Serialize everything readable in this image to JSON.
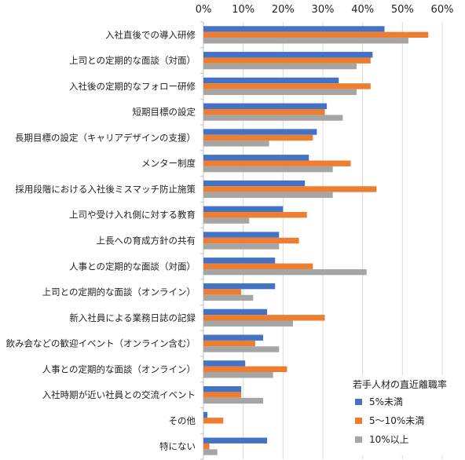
{
  "chart_data": {
    "type": "bar",
    "orientation": "horizontal",
    "title": "",
    "xlabel": "",
    "ylabel": "",
    "xlim": [
      0,
      60
    ],
    "x_ticks": [
      "0%",
      "10%",
      "20%",
      "30%",
      "40%",
      "50%",
      "60%"
    ],
    "x_tick_values": [
      0,
      10,
      20,
      30,
      40,
      50,
      60
    ],
    "x_axis_position": "top",
    "grid": true,
    "legend_position": "bottom-right",
    "legend_title": "若手人材の直近離職率",
    "categories": [
      "入社直後での導入研修",
      "上司との定期的な面談（対面）",
      "入社後の定期的なフォロー研修",
      "短期目標の設定",
      "長期目標の設定（キャリアデザインの支援）",
      "メンター制度",
      "採用段階における入社後ミスマッチ防止施策",
      "上司や受け入れ側に対する教育",
      "上長への育成方針の共有",
      "人事との定期的な面談（対面）",
      "上司との定期的な面談（オンライン）",
      "新入社員による業務日誌の記録",
      "飲み会などの歓迎イベント（オンライン含む）",
      "人事との定期的な面談（オンライン）",
      "入社時期が近い社員との交流イベント",
      "その他",
      "特にない"
    ],
    "series": [
      {
        "name": "5%未満",
        "color": "#4472C4",
        "values": [
          45.5,
          42.5,
          34.0,
          31.0,
          28.5,
          26.5,
          25.5,
          20.0,
          19.0,
          18.0,
          18.0,
          16.0,
          15.0,
          10.5,
          9.5,
          1.0,
          16.0
        ]
      },
      {
        "name": "5〜10%未満",
        "color": "#ED7D31",
        "values": [
          56.5,
          42.0,
          42.0,
          30.5,
          27.5,
          37.0,
          43.5,
          26.0,
          24.0,
          27.5,
          9.5,
          30.5,
          13.0,
          21.0,
          9.5,
          5.0,
          1.5
        ]
      },
      {
        "name": "10%以上",
        "color": "#A5A5A5",
        "values": [
          51.5,
          38.5,
          38.5,
          35.0,
          16.5,
          32.5,
          32.5,
          11.5,
          19.0,
          41.0,
          12.5,
          22.5,
          19.0,
          17.5,
          15.0,
          0,
          3.5
        ]
      }
    ]
  }
}
